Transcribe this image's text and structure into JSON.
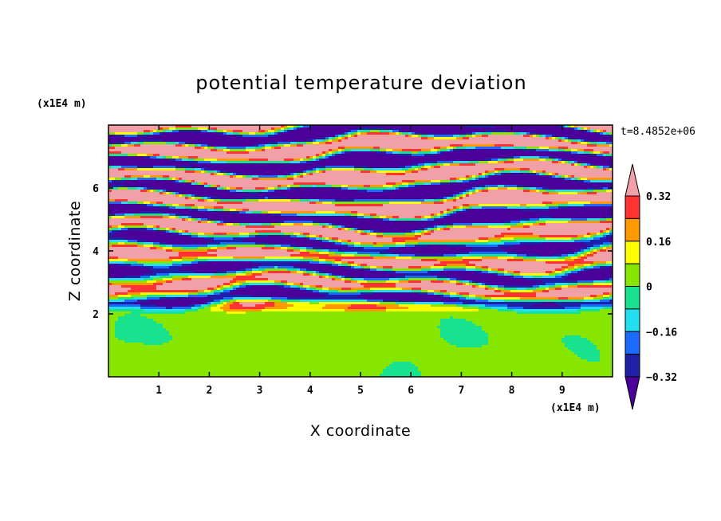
{
  "chart_data": {
    "type": "heatmap",
    "title": "potential temperature deviation",
    "xlabel": "X coordinate",
    "ylabel": "Z coordinate",
    "x_unit": "(x1E4 m)",
    "y_unit": "(x1E4 m)",
    "time_label": "t=8.4852e+06",
    "xlim": [
      0,
      10
    ],
    "ylim": [
      0,
      8
    ],
    "xticks": [
      "1",
      "2",
      "3",
      "4",
      "5",
      "6",
      "7",
      "8",
      "9"
    ],
    "yticks": [
      "2",
      "4",
      "6"
    ],
    "colorbar": {
      "tick_labels": [
        "0.32",
        "0.16",
        "0",
        "−0.16",
        "−0.32"
      ],
      "levels": [
        -0.4,
        -0.32,
        -0.24,
        -0.16,
        -0.08,
        0,
        0.08,
        0.16,
        0.24,
        0.32,
        0.4
      ],
      "colors": [
        "#4b0099",
        "#1f1fa8",
        "#1a6cff",
        "#22e0f0",
        "#19e28e",
        "#86e600",
        "#ffff00",
        "#ff9900",
        "#ff3333",
        "#f2a0a8"
      ]
    },
    "regions": [
      {
        "z_range": [
          0,
          2
        ],
        "description": "near-uniform field, values about 0 to +0.08 with cyan-green patches"
      },
      {
        "z_range": [
          2,
          5
        ],
        "description": "strongly layered field, values from -0.4 to +0.4"
      },
      {
        "z_range": [
          5,
          8
        ],
        "description": "alternating bands of roughly +0.4 and -0.4"
      }
    ]
  },
  "colors": {
    "frame": "#000000",
    "background": "#ffffff"
  }
}
